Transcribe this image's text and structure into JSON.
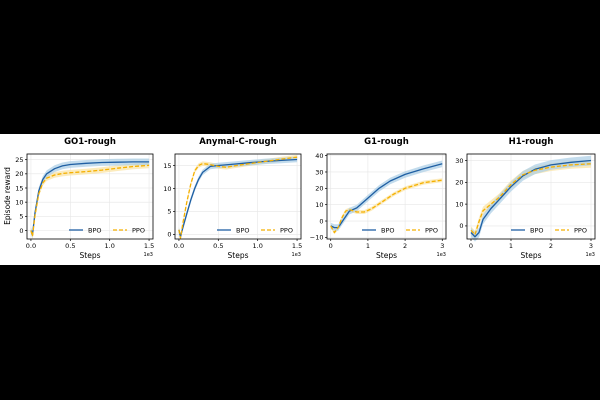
{
  "figure": {
    "y_label": "Episode reward"
  },
  "colors": {
    "bpo": "#1f5fa3",
    "bpo_band": "#a9cde6",
    "ppo": "#f5b000",
    "ppo_band": "#fbe3a0",
    "grid": "#e6e6e6",
    "axis": "#000000"
  },
  "chart_data": [
    {
      "type": "line",
      "title": "GO1-rough",
      "xlabel": "Steps",
      "ylabel": "Episode reward",
      "x_multiplier": "1e3",
      "xlim": [
        -0.05,
        1.55
      ],
      "ylim": [
        -3,
        27
      ],
      "xticks": [
        0.0,
        0.5,
        1.0,
        1.5
      ],
      "xtick_labels": [
        "0.0",
        "0.5",
        "1.0",
        "1.5"
      ],
      "yticks": [
        0,
        5,
        10,
        15,
        20,
        25
      ],
      "ytick_labels": [
        "0",
        "5",
        "10",
        "15",
        "20",
        "25"
      ],
      "legend": [
        "BPO",
        "PPO"
      ],
      "legend_position": "lower-right",
      "series": [
        {
          "name": "BPO",
          "band": 1.2,
          "points": [
            [
              0,
              0
            ],
            [
              0.02,
              -1.5
            ],
            [
              0.05,
              6
            ],
            [
              0.1,
              14
            ],
            [
              0.15,
              18
            ],
            [
              0.2,
              20
            ],
            [
              0.3,
              21.8
            ],
            [
              0.4,
              22.8
            ],
            [
              0.5,
              23.3
            ],
            [
              0.7,
              23.7
            ],
            [
              0.9,
              24
            ],
            [
              1.1,
              24.1
            ],
            [
              1.3,
              24.2
            ],
            [
              1.5,
              24.2
            ]
          ]
        },
        {
          "name": "PPO",
          "band": 1.0,
          "points": [
            [
              0,
              0
            ],
            [
              0.02,
              -2
            ],
            [
              0.05,
              5
            ],
            [
              0.1,
              13
            ],
            [
              0.15,
              16.8
            ],
            [
              0.2,
              18.5
            ],
            [
              0.3,
              19.6
            ],
            [
              0.4,
              20.1
            ],
            [
              0.5,
              20.4
            ],
            [
              0.7,
              20.8
            ],
            [
              0.9,
              21.3
            ],
            [
              1.1,
              22
            ],
            [
              1.3,
              22.6
            ],
            [
              1.5,
              23
            ]
          ]
        }
      ]
    },
    {
      "type": "line",
      "title": "Anymal-C-rough",
      "xlabel": "Steps",
      "ylabel": "",
      "x_multiplier": "1e3",
      "xlim": [
        -0.05,
        1.55
      ],
      "ylim": [
        -1,
        17.5
      ],
      "xticks": [
        0.0,
        0.5,
        1.0,
        1.5
      ],
      "xtick_labels": [
        "0.0",
        "0.5",
        "1.0",
        "1.5"
      ],
      "yticks": [
        0,
        5,
        10,
        15
      ],
      "ytick_labels": [
        "0",
        "5",
        "10",
        "15"
      ],
      "legend": [
        "BPO",
        "PPO"
      ],
      "legend_position": "lower-right",
      "series": [
        {
          "name": "BPO",
          "band": 0.6,
          "points": [
            [
              0,
              1
            ],
            [
              0.02,
              -0.5
            ],
            [
              0.05,
              1.5
            ],
            [
              0.1,
              4.5
            ],
            [
              0.15,
              7.5
            ],
            [
              0.2,
              10
            ],
            [
              0.25,
              12
            ],
            [
              0.3,
              13.5
            ],
            [
              0.4,
              14.8
            ],
            [
              0.5,
              15
            ],
            [
              0.7,
              15.3
            ],
            [
              0.9,
              15.6
            ],
            [
              1.1,
              15.9
            ],
            [
              1.3,
              16.1
            ],
            [
              1.5,
              16.3
            ]
          ]
        },
        {
          "name": "PPO",
          "band": 0.5,
          "points": [
            [
              0,
              1
            ],
            [
              0.02,
              -0.8
            ],
            [
              0.05,
              2.5
            ],
            [
              0.1,
              7
            ],
            [
              0.15,
              11
            ],
            [
              0.2,
              13.8
            ],
            [
              0.25,
              15
            ],
            [
              0.3,
              15.4
            ],
            [
              0.4,
              15.2
            ],
            [
              0.5,
              14.8
            ],
            [
              0.6,
              14.6
            ],
            [
              0.7,
              14.9
            ],
            [
              0.9,
              15.4
            ],
            [
              1.1,
              15.9
            ],
            [
              1.3,
              16.4
            ],
            [
              1.5,
              16.8
            ]
          ]
        }
      ]
    },
    {
      "type": "line",
      "title": "G1-rough",
      "xlabel": "Steps",
      "ylabel": "",
      "x_multiplier": "1e3",
      "xlim": [
        -0.1,
        3.1
      ],
      "ylim": [
        -11,
        41
      ],
      "xticks": [
        0,
        1,
        2,
        3
      ],
      "xtick_labels": [
        "0",
        "1",
        "2",
        "3"
      ],
      "yticks": [
        -10,
        0,
        10,
        20,
        30,
        40
      ],
      "ytick_labels": [
        "−10",
        "0",
        "10",
        "20",
        "30",
        "40"
      ],
      "legend": [
        "BPO",
        "PPO"
      ],
      "legend_position": "lower-right",
      "series": [
        {
          "name": "BPO",
          "band": 2.0,
          "points": [
            [
              0,
              -3
            ],
            [
              0.1,
              -4
            ],
            [
              0.2,
              -4
            ],
            [
              0.35,
              1
            ],
            [
              0.5,
              6
            ],
            [
              0.7,
              8
            ],
            [
              1.0,
              14
            ],
            [
              1.3,
              20
            ],
            [
              1.6,
              24.5
            ],
            [
              2.0,
              28.5
            ],
            [
              2.5,
              32
            ],
            [
              3.0,
              35
            ]
          ]
        },
        {
          "name": "PPO",
          "band": 1.2,
          "points": [
            [
              0,
              -3
            ],
            [
              0.1,
              -7
            ],
            [
              0.2,
              -4
            ],
            [
              0.3,
              2
            ],
            [
              0.4,
              6
            ],
            [
              0.5,
              7
            ],
            [
              0.7,
              5.5
            ],
            [
              0.9,
              5.5
            ],
            [
              1.1,
              7.5
            ],
            [
              1.4,
              12
            ],
            [
              1.7,
              16.5
            ],
            [
              2.0,
              20
            ],
            [
              2.5,
              23.5
            ],
            [
              3.0,
              25
            ]
          ]
        }
      ]
    },
    {
      "type": "line",
      "title": "H1-rough",
      "xlabel": "Steps",
      "ylabel": "",
      "x_multiplier": "1e3",
      "xlim": [
        -0.1,
        3.1
      ],
      "ylim": [
        -6,
        33
      ],
      "xticks": [
        0,
        1,
        2,
        3
      ],
      "xtick_labels": [
        "0",
        "1",
        "2",
        "3"
      ],
      "yticks": [
        0,
        10,
        20,
        30
      ],
      "ytick_labels": [
        "0",
        "10",
        "20",
        "30"
      ],
      "legend": [
        "BPO",
        "PPO"
      ],
      "legend_position": "lower-right",
      "series": [
        {
          "name": "BPO",
          "band": 2.2,
          "points": [
            [
              0,
              -3
            ],
            [
              0.1,
              -5
            ],
            [
              0.2,
              -3
            ],
            [
              0.3,
              3
            ],
            [
              0.5,
              8
            ],
            [
              0.7,
              12
            ],
            [
              1.0,
              18
            ],
            [
              1.3,
              23
            ],
            [
              1.6,
              26
            ],
            [
              2.0,
              28
            ],
            [
              2.5,
              29.2
            ],
            [
              3.0,
              30
            ]
          ]
        },
        {
          "name": "PPO",
          "band": 1.8,
          "points": [
            [
              0,
              -2
            ],
            [
              0.1,
              -4
            ],
            [
              0.2,
              2
            ],
            [
              0.3,
              7
            ],
            [
              0.5,
              10
            ],
            [
              0.7,
              13
            ],
            [
              1.0,
              19
            ],
            [
              1.3,
              23.5
            ],
            [
              1.6,
              25.5
            ],
            [
              2.0,
              27
            ],
            [
              2.5,
              28
            ],
            [
              3.0,
              28.5
            ]
          ]
        }
      ]
    }
  ]
}
